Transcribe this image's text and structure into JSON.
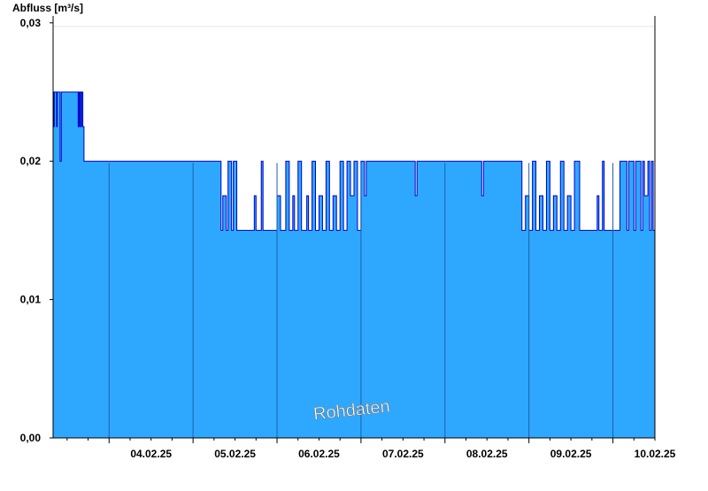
{
  "chart_data": {
    "type": "area",
    "ylabel": "Abfluss [m³/s]",
    "watermark": "Rohdaten",
    "ylim": [
      0,
      0.0305
    ],
    "yticks": [
      0,
      0.01,
      0.02,
      0.03
    ],
    "ytick_labels": [
      "0,00",
      "0,01",
      "0,02",
      "0,03"
    ],
    "xlim": [
      "2025-02-03T08:00",
      "2025-02-10T12:00"
    ],
    "xtick_labels": [
      "04.02.25",
      "05.02.25",
      "06.02.25",
      "07.02.25",
      "08.02.25",
      "09.02.25",
      "10.02.25"
    ],
    "day_boundaries": [
      "2025-02-04T00:00",
      "2025-02-05T00:00",
      "2025-02-06T00:00",
      "2025-02-07T00:00",
      "2025-02-08T00:00",
      "2025-02-09T00:00",
      "2025-02-10T00:00"
    ],
    "colors": {
      "fill": "#2ea8ff",
      "line": "#0000cc",
      "boundary": "#1f5fa8"
    },
    "series": [
      {
        "x": [
          "2025-02-03T08:00",
          "2025-02-03T08:10",
          "2025-02-03T08:20",
          "2025-02-03T09:00",
          "2025-02-03T09:10",
          "2025-02-03T10:00",
          "2025-02-03T10:20",
          "2025-02-03T11:00",
          "2025-02-03T11:20",
          "2025-02-03T11:40",
          "2025-02-03T12:00",
          "2025-02-03T12:20",
          "2025-02-03T12:40",
          "2025-02-03T13:00",
          "2025-02-03T13:20",
          "2025-02-03T13:40",
          "2025-02-03T14:00",
          "2025-02-03T14:20",
          "2025-02-03T14:40",
          "2025-02-03T15:00",
          "2025-02-03T15:10",
          "2025-02-03T15:20",
          "2025-02-03T15:30",
          "2025-02-03T15:40",
          "2025-02-03T16:00",
          "2025-02-03T16:10",
          "2025-02-03T16:30",
          "2025-02-03T16:50",
          "2025-02-03T17:00",
          "2025-02-03T17:20",
          "2025-02-04T02:00",
          "2025-02-05T07:00",
          "2025-02-05T08:00",
          "2025-02-05T08:30",
          "2025-02-05T09:30",
          "2025-02-05T10:00",
          "2025-02-05T11:00",
          "2025-02-05T11:30",
          "2025-02-05T12:30",
          "2025-02-05T13:30",
          "2025-02-05T17:30",
          "2025-02-05T18:00",
          "2025-02-05T19:30",
          "2025-02-05T20:00",
          "2025-02-05T21:00",
          "2025-02-05T23:00",
          "2025-02-06T00:00",
          "2025-02-06T01:00",
          "2025-02-06T02:30",
          "2025-02-06T03:30",
          "2025-02-06T04:30",
          "2025-02-06T05:00",
          "2025-02-06T06:00",
          "2025-02-06T07:00",
          "2025-02-06T08:30",
          "2025-02-06T09:00",
          "2025-02-06T10:00",
          "2025-02-06T11:00",
          "2025-02-06T12:00",
          "2025-02-06T13:00",
          "2025-02-06T14:00",
          "2025-02-06T15:00",
          "2025-02-06T16:00",
          "2025-02-06T17:00",
          "2025-02-06T18:00",
          "2025-02-06T19:00",
          "2025-02-06T20:00",
          "2025-02-06T21:00",
          "2025-02-06T22:00",
          "2025-02-06T23:00",
          "2025-02-07T00:00",
          "2025-02-07T01:00",
          "2025-02-07T01:30",
          "2025-02-07T02:00",
          "2025-02-07T15:30",
          "2025-02-07T16:00",
          "2025-02-08T10:30",
          "2025-02-08T11:00",
          "2025-02-08T21:30",
          "2025-02-08T22:00",
          "2025-02-08T23:00",
          "2025-02-09T00:00",
          "2025-02-09T01:00",
          "2025-02-09T02:00",
          "2025-02-09T03:00",
          "2025-02-09T04:00",
          "2025-02-09T05:00",
          "2025-02-09T06:00",
          "2025-02-09T07:00",
          "2025-02-09T08:00",
          "2025-02-09T09:00",
          "2025-02-09T10:00",
          "2025-02-09T11:00",
          "2025-02-09T12:00",
          "2025-02-09T13:00",
          "2025-02-09T14:30",
          "2025-02-09T15:00",
          "2025-02-09T19:30",
          "2025-02-09T20:00",
          "2025-02-09T21:00",
          "2025-02-09T21:30",
          "2025-02-10T01:30",
          "2025-02-10T02:00",
          "2025-02-10T04:00",
          "2025-02-10T04:30",
          "2025-02-10T06:00",
          "2025-02-10T06:30",
          "2025-02-10T08:00",
          "2025-02-10T08:30",
          "2025-02-10T09:00",
          "2025-02-10T10:00",
          "2025-02-10T10:30",
          "2025-02-10T11:00",
          "2025-02-10T11:30",
          "2025-02-10T12:00"
        ],
        "y": [
          0.025,
          0.0225,
          0.025,
          0.0225,
          0.025,
          0.02,
          0.025,
          0.025,
          0.025,
          0.025,
          0.025,
          0.025,
          0.025,
          0.025,
          0.025,
          0.025,
          0.025,
          0.025,
          0.025,
          0.025,
          0.0225,
          0.025,
          0.0225,
          0.025,
          0.0225,
          0.025,
          0.0225,
          0.02,
          0.02,
          0.02,
          0.02,
          0.02,
          0.015,
          0.0175,
          0.015,
          0.02,
          0.015,
          0.02,
          0.015,
          0.015,
          0.0175,
          0.015,
          0.02,
          0.015,
          0.015,
          0.015,
          0.0175,
          0.015,
          0.02,
          0.015,
          0.0175,
          0.015,
          0.02,
          0.015,
          0.0175,
          0.015,
          0.02,
          0.015,
          0.0175,
          0.015,
          0.02,
          0.015,
          0.0175,
          0.015,
          0.02,
          0.015,
          0.02,
          0.0175,
          0.02,
          0.015,
          0.02,
          0.0175,
          0.02,
          0.02,
          0.0175,
          0.02,
          0.0175,
          0.02,
          0.02,
          0.015,
          0.0175,
          0.015,
          0.02,
          0.015,
          0.0175,
          0.015,
          0.02,
          0.015,
          0.0175,
          0.015,
          0.02,
          0.015,
          0.0175,
          0.015,
          0.02,
          0.015,
          0.015,
          0.0175,
          0.015,
          0.02,
          0.015,
          0.015,
          0.02,
          0.015,
          0.02,
          0.015,
          0.02,
          0.015,
          0.02,
          0.0175,
          0.02,
          0.015,
          0.02,
          0.015,
          0.02
        ]
      }
    ],
    "grid": false
  }
}
